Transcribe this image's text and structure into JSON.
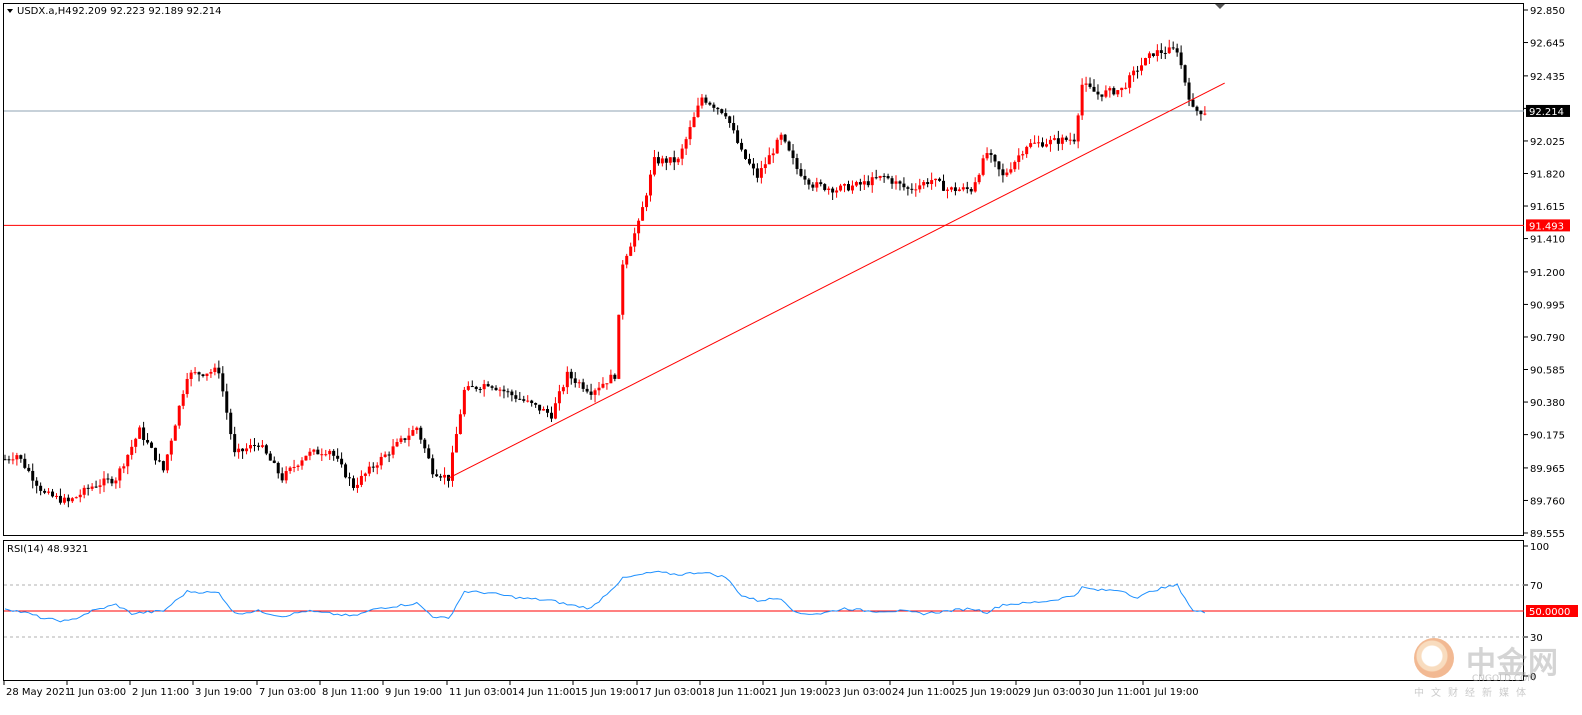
{
  "header": {
    "symbol": "USDX.a,H4",
    "ohlc": "92.209 92.223 92.189 92.214",
    "dropdown_icon": "triangle-down-icon"
  },
  "price_axis": {
    "min": 89.555,
    "max": 92.85,
    "ticks": [
      "92.850",
      "92.645",
      "92.435",
      "92.230",
      "92.025",
      "91.820",
      "91.615",
      "91.410",
      "91.200",
      "90.995",
      "90.790",
      "90.585",
      "90.380",
      "90.175",
      "89.965",
      "89.760",
      "89.555"
    ]
  },
  "levels": {
    "current_price": {
      "value": 92.214,
      "label": "92.214",
      "color": "#8fa3b3"
    },
    "support": {
      "value": 91.493,
      "label": "91.493",
      "color": "#ff0000"
    }
  },
  "trendline": {
    "from": {
      "bar": 112,
      "price": 89.9
    },
    "to": {
      "bar": 308,
      "price": 92.39
    },
    "color": "#ff0000"
  },
  "rsi": {
    "title": "RSI(14) 48.9321",
    "ticks": [
      "100",
      "70",
      "50.0000",
      "30",
      "0"
    ],
    "level_high": 70,
    "level_mid": 50,
    "level_low": 30,
    "line_color": "#1e90ff"
  },
  "x_axis": {
    "labels": [
      "28 May 2021",
      "1 Jun 03:00",
      "2 Jun 11:00",
      "3 Jun 19:00",
      "7 Jun 03:00",
      "8 Jun 11:00",
      "9 Jun 19:00",
      "11 Jun 03:00",
      "14 Jun 11:00",
      "15 Jun 19:00",
      "17 Jun 03:00",
      "18 Jun 11:00",
      "21 Jun 19:00",
      "23 Jun 03:00",
      "24 Jun 11:00",
      "25 Jun 19:00",
      "29 Jun 03:00",
      "30 Jun 11:00",
      "1 Jul 19:00"
    ]
  },
  "colors": {
    "bull": "#ff0000",
    "bear": "#000000",
    "grid_dash": "#b0b0b0",
    "frame": "#000000"
  },
  "watermark": {
    "logo_icon": "cngold-logo-icon",
    "cn_name": "中金网",
    "domain": "CNGOLD.COM",
    "slogan": "中文财经新媒体"
  },
  "chart_data": {
    "type": "candlestick",
    "timeframe": "H4",
    "symbol": "USDX.a",
    "indicator": "RSI(14)",
    "anchors_price": [
      [
        0,
        90.02
      ],
      [
        3,
        90.05
      ],
      [
        10,
        89.8
      ],
      [
        16,
        89.75
      ],
      [
        22,
        89.85
      ],
      [
        28,
        89.9
      ],
      [
        34,
        90.2
      ],
      [
        40,
        89.95
      ],
      [
        46,
        90.55
      ],
      [
        54,
        90.58
      ],
      [
        58,
        90.05
      ],
      [
        64,
        90.12
      ],
      [
        70,
        89.9
      ],
      [
        76,
        90.05
      ],
      [
        82,
        90.08
      ],
      [
        88,
        89.85
      ],
      [
        94,
        90.0
      ],
      [
        104,
        90.22
      ],
      [
        108,
        89.95
      ],
      [
        112,
        89.9
      ],
      [
        116,
        90.45
      ],
      [
        122,
        90.5
      ],
      [
        130,
        90.4
      ],
      [
        138,
        90.3
      ],
      [
        142,
        90.55
      ],
      [
        148,
        90.45
      ],
      [
        154,
        90.55
      ],
      [
        156,
        91.26
      ],
      [
        160,
        91.5
      ],
      [
        164,
        91.9
      ],
      [
        170,
        91.9
      ],
      [
        176,
        92.3
      ],
      [
        182,
        92.2
      ],
      [
        186,
        91.95
      ],
      [
        190,
        91.8
      ],
      [
        196,
        92.05
      ],
      [
        200,
        91.85
      ],
      [
        204,
        91.75
      ],
      [
        210,
        91.72
      ],
      [
        216,
        91.75
      ],
      [
        222,
        91.8
      ],
      [
        228,
        91.72
      ],
      [
        234,
        91.78
      ],
      [
        238,
        91.72
      ],
      [
        244,
        91.72
      ],
      [
        248,
        91.95
      ],
      [
        252,
        91.8
      ],
      [
        258,
        92.0
      ],
      [
        264,
        92.02
      ],
      [
        270,
        92.04
      ],
      [
        272,
        92.38
      ],
      [
        276,
        92.32
      ],
      [
        282,
        92.35
      ],
      [
        286,
        92.48
      ],
      [
        290,
        92.58
      ],
      [
        296,
        92.6
      ],
      [
        298,
        92.4
      ],
      [
        300,
        92.22
      ],
      [
        303,
        92.21
      ]
    ],
    "anchors_rsi": [
      [
        0,
        52
      ],
      [
        6,
        48
      ],
      [
        10,
        44
      ],
      [
        16,
        42
      ],
      [
        22,
        50
      ],
      [
        28,
        55
      ],
      [
        32,
        48
      ],
      [
        40,
        50
      ],
      [
        46,
        65
      ],
      [
        54,
        64
      ],
      [
        58,
        48
      ],
      [
        64,
        50
      ],
      [
        70,
        46
      ],
      [
        76,
        50
      ],
      [
        82,
        48
      ],
      [
        88,
        46
      ],
      [
        94,
        52
      ],
      [
        104,
        56
      ],
      [
        108,
        46
      ],
      [
        112,
        44
      ],
      [
        116,
        65
      ],
      [
        122,
        64
      ],
      [
        130,
        60
      ],
      [
        138,
        58
      ],
      [
        142,
        55
      ],
      [
        148,
        52
      ],
      [
        156,
        75
      ],
      [
        164,
        80
      ],
      [
        170,
        78
      ],
      [
        176,
        80
      ],
      [
        182,
        76
      ],
      [
        186,
        62
      ],
      [
        190,
        58
      ],
      [
        196,
        60
      ],
      [
        200,
        48
      ],
      [
        206,
        48
      ],
      [
        212,
        52
      ],
      [
        218,
        50
      ],
      [
        226,
        50
      ],
      [
        232,
        48
      ],
      [
        238,
        50
      ],
      [
        244,
        52
      ],
      [
        248,
        49
      ],
      [
        252,
        55
      ],
      [
        258,
        56
      ],
      [
        264,
        58
      ],
      [
        270,
        62
      ],
      [
        272,
        68
      ],
      [
        276,
        66
      ],
      [
        282,
        66
      ],
      [
        286,
        60
      ],
      [
        290,
        66
      ],
      [
        296,
        70
      ],
      [
        300,
        50
      ],
      [
        303,
        48.9321
      ]
    ],
    "bar_count": 304,
    "ylim": [
      89.555,
      92.85
    ],
    "rsi_ylim": [
      0,
      100
    ]
  }
}
